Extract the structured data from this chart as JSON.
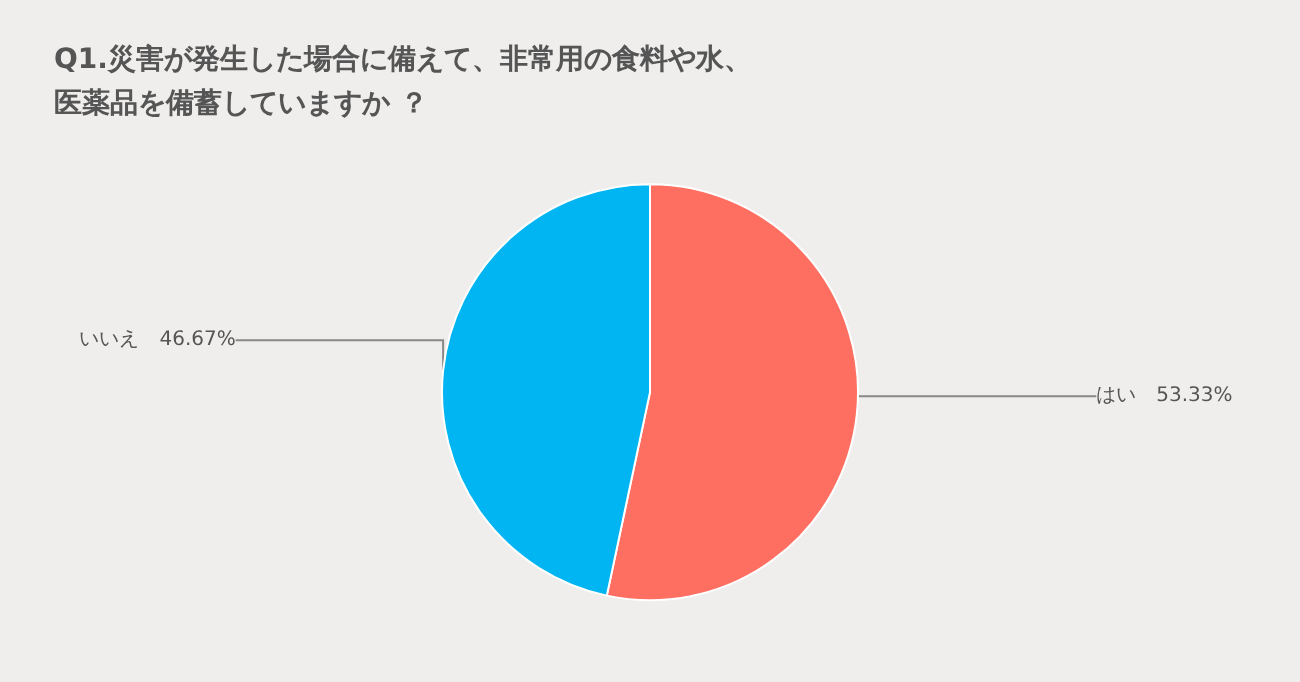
{
  "chart_data": {
    "type": "pie",
    "title": "Q1.災害が発生した場合に備えて、非常用の食料や水、医薬品を備蓄していますか ？",
    "categories": [
      "はい",
      "いいえ"
    ],
    "values": [
      53.33,
      46.67
    ],
    "colors": [
      "#ff6f61",
      "#00b5f1"
    ],
    "value_labels": [
      "53.33%",
      "46.67%"
    ],
    "legend": false
  }
}
